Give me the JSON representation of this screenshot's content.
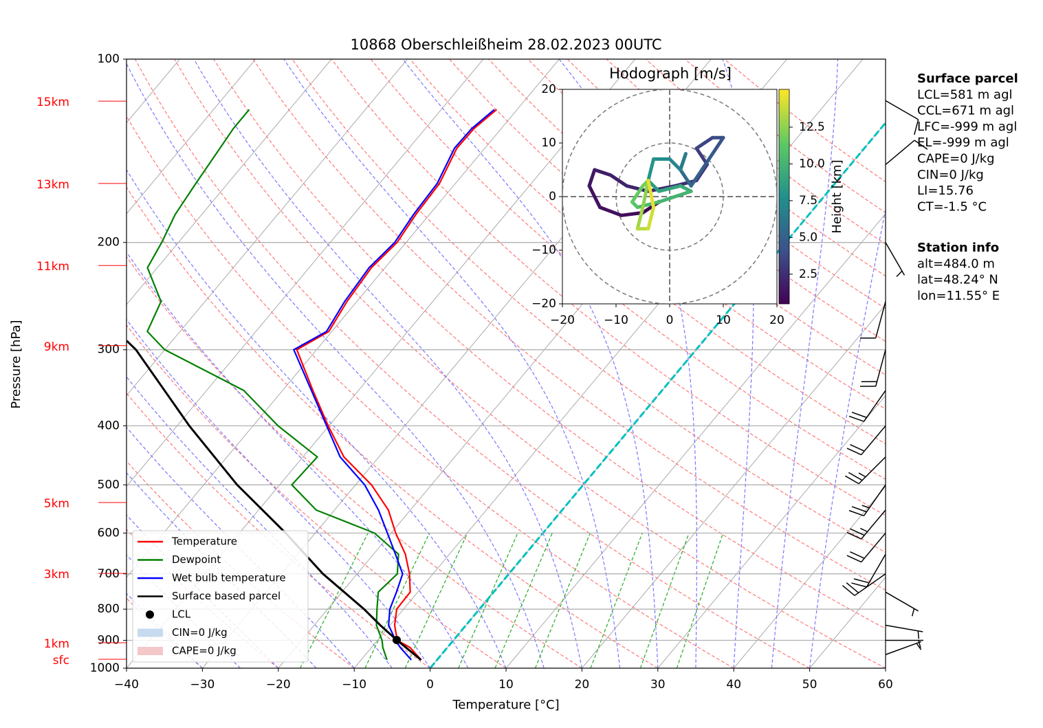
{
  "chart_data": [
    {
      "type": "skewt",
      "title": "10868 Oberschleißheim 28.02.2023 00UTC",
      "x_label": "Temperature [°C]",
      "y_label": "Pressure [hPa]",
      "xlim": [
        -40,
        60
      ],
      "xticks": [
        {
          "value": -40,
          "label": "−40"
        },
        {
          "value": -30,
          "label": "−30"
        },
        {
          "value": -20,
          "label": "−20"
        },
        {
          "value": -10,
          "label": "−10"
        },
        0,
        10,
        20,
        30,
        40,
        50,
        60
      ],
      "ylim": [
        1000,
        100
      ],
      "log_y": true,
      "yticks": [
        100,
        200,
        300,
        400,
        500,
        600,
        700,
        800,
        900,
        1000
      ],
      "grid": true,
      "height_ticks": [
        {
          "value": 117.2,
          "label": "15km"
        },
        {
          "value": 160.0,
          "label": "13km"
        },
        {
          "value": 218.2,
          "label": "11km"
        },
        {
          "value": 295.4,
          "label": "9km"
        },
        {
          "value": 534.6,
          "label": "5km"
        },
        {
          "value": 698.8,
          "label": "3km"
        },
        {
          "value": 908.3,
          "label": "1km"
        },
        {
          "value": 966.8,
          "label": "sfc"
        }
      ],
      "series": [
        {
          "name": "Temperature",
          "color": "#ff0000",
          "pressure": [
            969,
            925,
            900,
            850,
            800,
            750,
            700,
            650,
            600,
            550,
            500,
            450,
            400,
            350,
            300,
            280,
            250,
            220,
            200,
            180,
            160,
            140,
            130,
            121
          ],
          "values": [
            -2.1,
            -4.9,
            -7.4,
            -9.4,
            -10.9,
            -11.0,
            -13.1,
            -15.8,
            -19.4,
            -22.9,
            -27.9,
            -34.6,
            -40.1,
            -46.0,
            -52.6,
            -50.4,
            -51.3,
            -51.8,
            -51.2,
            -51.8,
            -52.1,
            -53.7,
            -53.6,
            -52.7
          ]
        },
        {
          "name": "Dewpoint",
          "color": "#008000",
          "pressure": [
            969,
            925,
            900,
            850,
            800,
            750,
            700,
            650,
            600,
            550,
            500,
            450,
            400,
            350,
            300,
            280,
            250,
            220,
            200,
            180,
            160,
            140,
            130,
            121
          ],
          "values": [
            -6.6,
            -8.5,
            -9.4,
            -11.8,
            -13.5,
            -15.2,
            -14.7,
            -16.7,
            -22.2,
            -32.4,
            -38.4,
            -38.1,
            -46.7,
            -55.1,
            -70.0,
            -74.3,
            -75.8,
            -81.3,
            -82.2,
            -83.5,
            -84.2,
            -84.9,
            -85.3,
            -85.3
          ]
        },
        {
          "name": "Wet bulb temperature",
          "color": "#0000ff",
          "pressure": [
            969,
            925,
            900,
            850,
            800,
            750,
            700,
            650,
            600,
            550,
            500,
            450,
            400,
            350,
            300,
            280,
            250,
            220,
            200,
            180,
            160,
            140,
            130,
            121
          ],
          "values": [
            -3.4,
            -6.2,
            -7.6,
            -10.2,
            -11.8,
            -12.8,
            -14.0,
            -17.1,
            -20.5,
            -24.2,
            -28.8,
            -35.1,
            -40.3,
            -46.2,
            -53.0,
            -50.7,
            -51.6,
            -52.1,
            -51.5,
            -52.1,
            -52.4,
            -54.0,
            -53.9,
            -53.0
          ]
        },
        {
          "name": "Surface based parcel",
          "color": "#000000",
          "pressure": [
            969,
            899,
            850,
            800,
            700,
            600,
            500,
            400,
            300,
            290
          ],
          "values": [
            -2.1,
            -7.5,
            -11.3,
            -15.2,
            -24.5,
            -33.9,
            -45.6,
            -58.4,
            -73.8,
            -76.0
          ]
        }
      ],
      "lcl": {
        "name": "LCL",
        "color": "#000000",
        "pressure": 899,
        "value": -7.5
      },
      "shaded": [
        {
          "name": "CIN=0 J/kg",
          "color": "#c6dbef"
        },
        {
          "name": "CAPE=0 J/kg",
          "color": "#f4c7c9"
        }
      ],
      "wind": {
        "pressure": [
          117,
          149,
          200,
          250,
          300,
          350,
          400,
          450,
          500,
          550,
          600,
          650,
          700,
          750,
          850,
          900,
          950
        ],
        "speed": [
          10,
          10,
          5,
          10,
          20,
          20,
          20,
          25,
          25,
          25,
          20,
          20,
          20,
          5,
          5,
          5,
          5
        ],
        "direction": [
          120,
          50,
          150,
          195,
          195,
          215,
          220,
          225,
          215,
          220,
          220,
          210,
          235,
          120,
          100,
          90,
          70
        ]
      },
      "surface_parcel": {
        "title": "Surface parcel",
        "lines": [
          "LCL=581 m agl",
          "CCL=671 m agl",
          "LFC=-999 m agl",
          "EL=-999 m agl",
          "CAPE=0 J/kg",
          "CIN=0 J/kg",
          "LI=15.76",
          "CT=-1.5 °C"
        ]
      },
      "station_info": {
        "title": "Station info",
        "lines": [
          "alt=484.0 m",
          "lat=48.24° N",
          "lon=11.55° E"
        ]
      }
    },
    {
      "type": "hodograph",
      "title": "Hodograph [m/s]",
      "xlim": [
        -20,
        20
      ],
      "ylim": [
        -20,
        20
      ],
      "xticks": [
        {
          "value": -20,
          "label": "−20"
        },
        {
          "value": -10,
          "label": "−10"
        },
        0,
        10,
        20
      ],
      "yticks": [
        {
          "value": -20,
          "label": "−20"
        },
        {
          "value": -10,
          "label": "−10"
        },
        0,
        10,
        20
      ],
      "colorbar_label": "Height [km]",
      "clim": [
        0.48,
        15.07
      ],
      "cticks": [
        2.5,
        {
          "value": 5.0,
          "label": "5.0"
        },
        {
          "value": 7.5,
          "label": "7.5"
        },
        {
          "value": 10.0,
          "label": "10.0"
        },
        12.5
      ],
      "u": [
        -2,
        -5,
        -9,
        -13,
        -15,
        -14,
        -11,
        -8,
        -4,
        1,
        5,
        7,
        5,
        8,
        10,
        8,
        6,
        4,
        2,
        3,
        2,
        0,
        -3,
        -4,
        -2,
        2,
        4,
        -2,
        -6,
        -7,
        -5,
        -4,
        -5,
        -6,
        -4,
        -3,
        -4
      ],
      "v": [
        -1,
        -3,
        -3.5,
        -2,
        2,
        5,
        4,
        2,
        1,
        2,
        3,
        6,
        9,
        11,
        11,
        8,
        5,
        2,
        5,
        8,
        5,
        7,
        7,
        3,
        1,
        2,
        1,
        -1,
        -2,
        -1,
        2,
        3,
        -2,
        -6,
        -6,
        -2,
        3
      ],
      "height": [
        0.5,
        0.7,
        0.9,
        1.1,
        1.3,
        1.5,
        1.7,
        1.9,
        2.1,
        2.3,
        2.6,
        2.9,
        3.2,
        3.5,
        3.8,
        4.2,
        4.6,
        5.0,
        5.5,
        6.0,
        6.5,
        7.0,
        7.5,
        8.0,
        8.5,
        9.0,
        9.5,
        10.0,
        10.5,
        11.0,
        11.5,
        12.0,
        12.5,
        13.0,
        13.5,
        14.0,
        14.5
      ]
    }
  ]
}
